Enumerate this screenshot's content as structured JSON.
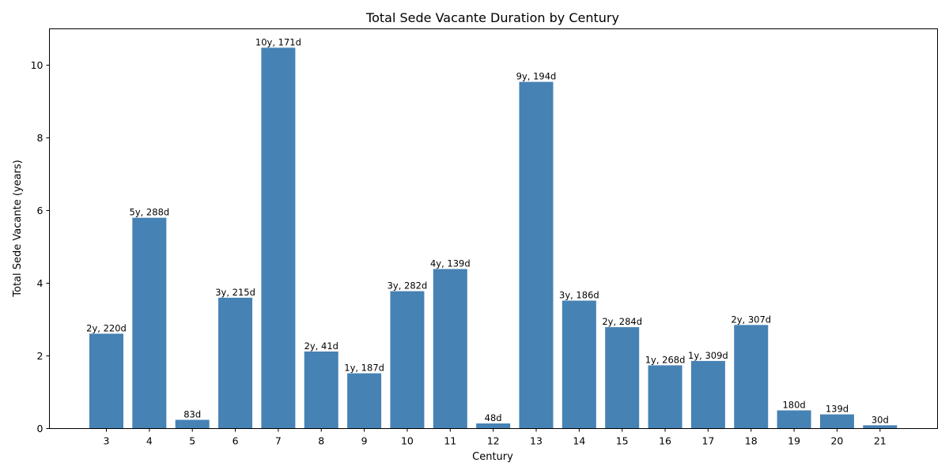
{
  "chart_data": {
    "type": "bar",
    "title": "Total Sede Vacante Duration by Century",
    "xlabel": "Century",
    "ylabel": "Total Sede Vacante (years)",
    "ylim": [
      0,
      11
    ],
    "yticks": [
      0,
      2,
      4,
      6,
      8,
      10
    ],
    "grid": false,
    "bar_color": "#4682b4",
    "categories": [
      "3",
      "4",
      "5",
      "6",
      "7",
      "8",
      "9",
      "10",
      "11",
      "12",
      "13",
      "14",
      "15",
      "16",
      "17",
      "18",
      "19",
      "20",
      "21"
    ],
    "values": [
      2.6,
      5.79,
      0.23,
      3.59,
      10.47,
      2.11,
      1.51,
      3.77,
      4.38,
      0.13,
      9.53,
      3.51,
      2.78,
      1.73,
      1.85,
      2.84,
      0.49,
      0.38,
      0.08
    ],
    "data_labels": [
      "2y, 220d",
      "5y, 288d",
      "83d",
      "3y, 215d",
      "10y, 171d",
      "2y, 41d",
      "1y, 187d",
      "3y, 282d",
      "4y, 139d",
      "48d",
      "9y, 194d",
      "3y, 186d",
      "2y, 284d",
      "1y, 268d",
      "1y, 309d",
      "2y, 307d",
      "180d",
      "139d",
      "30d"
    ]
  }
}
